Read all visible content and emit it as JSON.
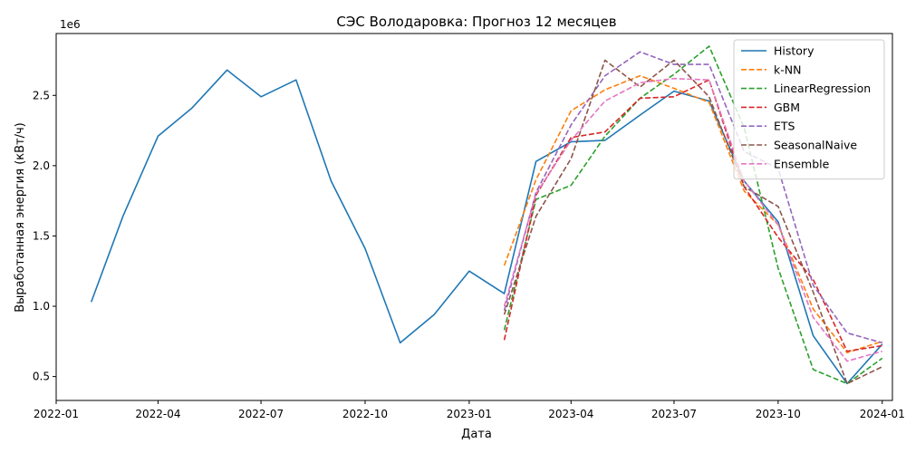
{
  "chart_data": {
    "type": "line",
    "title": "СЭС Володаровка: Прогноз 12 месяцев",
    "xlabel": "Дата",
    "ylabel": "Выработанная энергия (кВт/ч)",
    "y_multiplier": "1e6",
    "xlim": [
      "2022-01-01",
      "2024-01-10"
    ],
    "ylim": [
      0.33,
      2.94
    ],
    "x_ticks": [
      {
        "date": "2022-01-01",
        "label": "2022-01"
      },
      {
        "date": "2022-04-01",
        "label": "2022-04"
      },
      {
        "date": "2022-07-01",
        "label": "2022-07"
      },
      {
        "date": "2022-10-01",
        "label": "2022-10"
      },
      {
        "date": "2023-01-01",
        "label": "2023-01"
      },
      {
        "date": "2023-04-01",
        "label": "2023-04"
      },
      {
        "date": "2023-07-01",
        "label": "2023-07"
      },
      {
        "date": "2023-10-01",
        "label": "2023-10"
      },
      {
        "date": "2024-01-01",
        "label": "2024-01"
      }
    ],
    "y_ticks": [
      {
        "value": 0.5,
        "label": "0.5"
      },
      {
        "value": 1.0,
        "label": "1.0"
      },
      {
        "value": 1.5,
        "label": "1.5"
      },
      {
        "value": 2.0,
        "label": "2.0"
      },
      {
        "value": 2.5,
        "label": "2.5"
      }
    ],
    "grid": false,
    "legend_position": "top-right",
    "series": [
      {
        "name": "History",
        "color": "#1f77b4",
        "style": "solid",
        "points": [
          [
            "2022-02-01",
            1.03
          ],
          [
            "2022-03-01",
            1.64
          ],
          [
            "2022-04-01",
            2.21
          ],
          [
            "2022-05-01",
            2.41
          ],
          [
            "2022-06-01",
            2.68
          ],
          [
            "2022-07-01",
            2.49
          ],
          [
            "2022-08-01",
            2.61
          ],
          [
            "2022-09-01",
            1.89
          ],
          [
            "2022-10-01",
            1.41
          ],
          [
            "2022-11-01",
            0.74
          ],
          [
            "2022-12-01",
            0.94
          ],
          [
            "2023-01-01",
            1.25
          ],
          [
            "2023-02-01",
            1.09
          ],
          [
            "2023-03-01",
            2.03
          ],
          [
            "2023-04-01",
            2.17
          ],
          [
            "2023-05-01",
            2.18
          ],
          [
            "2023-06-01",
            2.36
          ],
          [
            "2023-07-01",
            2.53
          ],
          [
            "2023-08-01",
            2.46
          ],
          [
            "2023-09-01",
            1.89
          ],
          [
            "2023-10-01",
            1.6
          ],
          [
            "2023-11-01",
            0.79
          ],
          [
            "2023-12-01",
            0.45
          ],
          [
            "2024-01-01",
            0.73
          ]
        ]
      },
      {
        "name": "k-NN",
        "color": "#ff7f0e",
        "style": "dashed",
        "points": [
          [
            "2023-02-01",
            1.29
          ],
          [
            "2023-03-01",
            1.9
          ],
          [
            "2023-04-01",
            2.39
          ],
          [
            "2023-05-01",
            2.54
          ],
          [
            "2023-06-01",
            2.64
          ],
          [
            "2023-07-01",
            2.55
          ],
          [
            "2023-08-01",
            2.45
          ],
          [
            "2023-09-01",
            1.82
          ],
          [
            "2023-10-01",
            1.58
          ],
          [
            "2023-11-01",
            0.98
          ],
          [
            "2023-12-01",
            0.67
          ],
          [
            "2024-01-01",
            0.75
          ]
        ]
      },
      {
        "name": "LinearRegression",
        "color": "#2ca02c",
        "style": "dashed",
        "points": [
          [
            "2023-02-01",
            0.83
          ],
          [
            "2023-03-01",
            1.76
          ],
          [
            "2023-04-01",
            1.86
          ],
          [
            "2023-05-01",
            2.21
          ],
          [
            "2023-06-01",
            2.48
          ],
          [
            "2023-07-01",
            2.65
          ],
          [
            "2023-08-01",
            2.85
          ],
          [
            "2023-09-01",
            2.27
          ],
          [
            "2023-10-01",
            1.27
          ],
          [
            "2023-11-01",
            0.55
          ],
          [
            "2023-12-01",
            0.45
          ],
          [
            "2024-01-01",
            0.63
          ]
        ]
      },
      {
        "name": "GBM",
        "color": "#d62728",
        "style": "dashed",
        "points": [
          [
            "2023-02-01",
            0.76
          ],
          [
            "2023-03-01",
            1.79
          ],
          [
            "2023-04-01",
            2.2
          ],
          [
            "2023-05-01",
            2.24
          ],
          [
            "2023-06-01",
            2.48
          ],
          [
            "2023-07-01",
            2.49
          ],
          [
            "2023-08-01",
            2.61
          ],
          [
            "2023-09-01",
            1.85
          ],
          [
            "2023-10-01",
            1.49
          ],
          [
            "2023-11-01",
            1.19
          ],
          [
            "2023-12-01",
            0.68
          ],
          [
            "2024-01-01",
            0.72
          ]
        ]
      },
      {
        "name": "ETS",
        "color": "#9467bd",
        "style": "dashed",
        "points": [
          [
            "2023-02-01",
            0.97
          ],
          [
            "2023-03-01",
            1.81
          ],
          [
            "2023-04-01",
            2.29
          ],
          [
            "2023-05-01",
            2.64
          ],
          [
            "2023-06-01",
            2.81
          ],
          [
            "2023-07-01",
            2.72
          ],
          [
            "2023-08-01",
            2.72
          ],
          [
            "2023-09-01",
            2.1
          ],
          [
            "2023-10-01",
            1.98
          ],
          [
            "2023-11-01",
            1.15
          ],
          [
            "2023-12-01",
            0.81
          ],
          [
            "2024-01-01",
            0.74
          ]
        ]
      },
      {
        "name": "SeasonalNaive",
        "color": "#8c564b",
        "style": "dashed",
        "points": [
          [
            "2023-02-01",
            0.94
          ],
          [
            "2023-03-01",
            1.64
          ],
          [
            "2023-04-01",
            2.05
          ],
          [
            "2023-05-01",
            2.75
          ],
          [
            "2023-06-01",
            2.56
          ],
          [
            "2023-07-01",
            2.75
          ],
          [
            "2023-08-01",
            2.49
          ],
          [
            "2023-09-01",
            1.85
          ],
          [
            "2023-10-01",
            1.71
          ],
          [
            "2023-11-01",
            1.1
          ],
          [
            "2023-12-01",
            0.45
          ],
          [
            "2024-01-01",
            0.57
          ]
        ]
      },
      {
        "name": "Ensemble",
        "color": "#e377c2",
        "style": "dashed",
        "points": [
          [
            "2023-02-01",
            1.0
          ],
          [
            "2023-03-01",
            1.8
          ],
          [
            "2023-04-01",
            2.18
          ],
          [
            "2023-05-01",
            2.46
          ],
          [
            "2023-06-01",
            2.59
          ],
          [
            "2023-07-01",
            2.62
          ],
          [
            "2023-08-01",
            2.61
          ],
          [
            "2023-09-01",
            1.89
          ],
          [
            "2023-10-01",
            1.58
          ],
          [
            "2023-11-01",
            0.92
          ],
          [
            "2023-12-01",
            0.61
          ],
          [
            "2024-01-01",
            0.68
          ]
        ]
      }
    ]
  }
}
